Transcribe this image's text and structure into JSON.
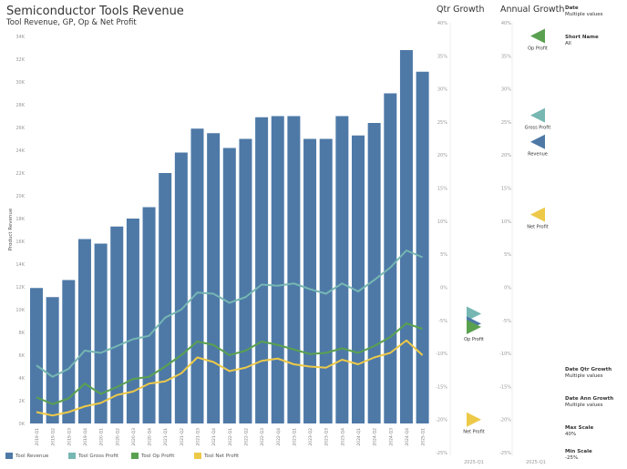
{
  "header": {
    "title": "Semiconductor Tools Revenue",
    "subtitle": "Tool Revenue, GP, Op & Net Profit"
  },
  "colors": {
    "revenue": "#4e79a7",
    "gross_profit": "#76b7b2",
    "op_profit": "#59a14f",
    "net_profit": "#edc948"
  },
  "chart_data": [
    {
      "type": "bar+line",
      "ylabel": "Product Revenue",
      "ylim": [
        0,
        34000
      ],
      "yticks": [
        "0K",
        "2K",
        "4K",
        "6K",
        "8K",
        "10K",
        "12K",
        "14K",
        "16K",
        "18K",
        "20K",
        "22K",
        "24K",
        "26K",
        "28K",
        "30K",
        "32K",
        "34K"
      ],
      "categories": [
        "2019-Q1",
        "2019-Q2",
        "2019-Q3",
        "2019-Q4",
        "2020-Q1",
        "2020-Q2",
        "2020-Q3",
        "2020-Q4",
        "2021-Q1",
        "2021-Q2",
        "2021-Q3",
        "2021-Q4",
        "2022-Q1",
        "2022-Q2",
        "2022-Q3",
        "2022-Q4",
        "2023-Q1",
        "2023-Q2",
        "2023-Q3",
        "2023-Q4",
        "2024-Q1",
        "2024-Q2",
        "2024-Q3",
        "2024-Q4",
        "2025-Q1"
      ],
      "series": [
        {
          "name": "Tool Revenue",
          "kind": "bar",
          "values": [
            11900,
            11100,
            12600,
            16200,
            15800,
            17300,
            18000,
            19000,
            22000,
            23800,
            25900,
            25500,
            24200,
            25000,
            26900,
            27000,
            27000,
            25000,
            25000,
            27000,
            25300,
            26400,
            29000,
            32800,
            30900
          ]
        },
        {
          "name": "Tool Gross Profit",
          "kind": "line",
          "values": [
            5100,
            4100,
            4800,
            6400,
            6200,
            6800,
            7400,
            7700,
            9300,
            10000,
            11500,
            11400,
            10600,
            11100,
            12200,
            12100,
            12300,
            11800,
            11400,
            12300,
            11600,
            12600,
            13700,
            15200,
            14600
          ]
        },
        {
          "name": "Tool Op Profit",
          "kind": "line",
          "values": [
            2300,
            1700,
            2200,
            3500,
            2600,
            3200,
            3900,
            4100,
            5000,
            6000,
            7200,
            6900,
            6000,
            6400,
            7200,
            6900,
            6500,
            6100,
            6200,
            6600,
            6200,
            6800,
            7600,
            8800,
            8300
          ]
        },
        {
          "name": "Tool Net Profit",
          "kind": "line",
          "values": [
            1000,
            700,
            1000,
            1500,
            1800,
            2500,
            2800,
            3500,
            3700,
            4400,
            5800,
            5400,
            4600,
            4900,
            5500,
            5700,
            5200,
            5000,
            4900,
            5600,
            5200,
            5800,
            6200,
            7300,
            6000
          ]
        }
      ],
      "legend": "bottom"
    },
    {
      "type": "scatter",
      "title": "Qtr Growth",
      "category": "2025-Q1",
      "ylim": [
        -25,
        40
      ],
      "yticks": [
        "40%",
        "35%",
        "30%",
        "25%",
        "20%",
        "15%",
        "10%",
        "5%",
        "0%",
        "-5%",
        "-10%",
        "-15%",
        "-20%",
        "-25%"
      ],
      "points": [
        {
          "name": "Gross Profit",
          "value": -4,
          "label": ""
        },
        {
          "name": "Revenue",
          "value": -5.5,
          "label": ""
        },
        {
          "name": "Op Profit",
          "value": -6,
          "label": "Op Profit"
        },
        {
          "name": "Net Profit",
          "value": -20,
          "label": "Net Profit"
        }
      ]
    },
    {
      "type": "scatter",
      "title": "Annual Growth",
      "category": "2025-Q1",
      "ylim": [
        -25,
        40
      ],
      "yticks": [
        "40%",
        "35%",
        "30%",
        "25%",
        "20%",
        "15%",
        "10%",
        "5%",
        "0%",
        "-5%",
        "-10%",
        "-15%",
        "-20%",
        "-25%"
      ],
      "points": [
        {
          "name": "Op Profit",
          "value": 38,
          "label": "Op Profit"
        },
        {
          "name": "Gross Profit",
          "value": 26,
          "label": "Gross Profit"
        },
        {
          "name": "Revenue",
          "value": 22,
          "label": "Revenue"
        },
        {
          "name": "Net Profit",
          "value": 11,
          "label": "Net Profit"
        }
      ]
    }
  ],
  "filters": [
    {
      "label": "Date",
      "value": "Multiple values"
    },
    {
      "label": "Short Name",
      "value": "All"
    },
    {
      "label": "Date Qtr Growth",
      "value": "Multiple values"
    },
    {
      "label": "Date Ann Growth",
      "value": "Multiple values"
    },
    {
      "label": "Max Scale",
      "value": "40%"
    },
    {
      "label": "Min Scale",
      "value": "-25%"
    }
  ]
}
